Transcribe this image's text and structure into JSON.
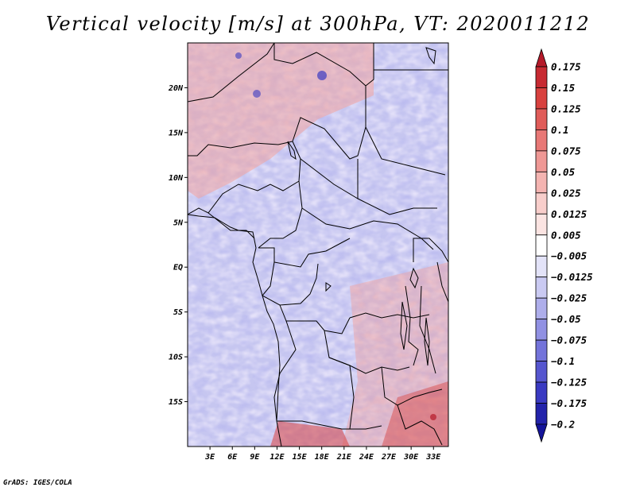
{
  "title": "Vertical velocity [m/s] at 300hPa, VT: 2020011212",
  "credit": "GrADS: IGES/COLA",
  "chart_data": {
    "type": "heatmap",
    "title": "Vertical velocity [m/s] at 300hPa, VT: 2020011212",
    "variable": "Vertical velocity",
    "units": "m/s",
    "level": "300hPa",
    "valid_time": "2020011212",
    "x_range_deg": [
      0,
      35
    ],
    "y_range_deg": [
      -20,
      25
    ],
    "x_ticks": [
      {
        "value": 3,
        "label": "3E"
      },
      {
        "value": 6,
        "label": "6E"
      },
      {
        "value": 9,
        "label": "9E"
      },
      {
        "value": 12,
        "label": "12E"
      },
      {
        "value": 15,
        "label": "15E"
      },
      {
        "value": 18,
        "label": "18E"
      },
      {
        "value": 21,
        "label": "21E"
      },
      {
        "value": 24,
        "label": "24E"
      },
      {
        "value": 27,
        "label": "27E"
      },
      {
        "value": 30,
        "label": "30E"
      },
      {
        "value": 33,
        "label": "33E"
      }
    ],
    "y_ticks": [
      {
        "value": 20,
        "label": "20N"
      },
      {
        "value": 15,
        "label": "15N"
      },
      {
        "value": 10,
        "label": "10N"
      },
      {
        "value": 5,
        "label": "5N"
      },
      {
        "value": 0,
        "label": "EQ"
      },
      {
        "value": -5,
        "label": "5S"
      },
      {
        "value": -10,
        "label": "10S"
      },
      {
        "value": -15,
        "label": "15S"
      }
    ],
    "colorbar": {
      "labels": [
        "0.175",
        "0.15",
        "0.125",
        "0.1",
        "0.075",
        "0.05",
        "0.025",
        "0.0125",
        "0.005",
        "-0.005",
        "-0.0125",
        "-0.025",
        "-0.05",
        "-0.075",
        "-0.1",
        "-0.125",
        "-0.175",
        "-0.2"
      ],
      "colors": [
        "#b51a2a",
        "#c72a32",
        "#d8413f",
        "#e05c59",
        "#e87876",
        "#ef9895",
        "#f4b4b1",
        "#f8cecb",
        "#fbe4e2",
        "#ffffff",
        "#e3e3f8",
        "#cacaf2",
        "#aeaeeb",
        "#9191e3",
        "#7373da",
        "#5656cf",
        "#3a3ac2",
        "#2323aa",
        "#14149a"
      ]
    }
  }
}
